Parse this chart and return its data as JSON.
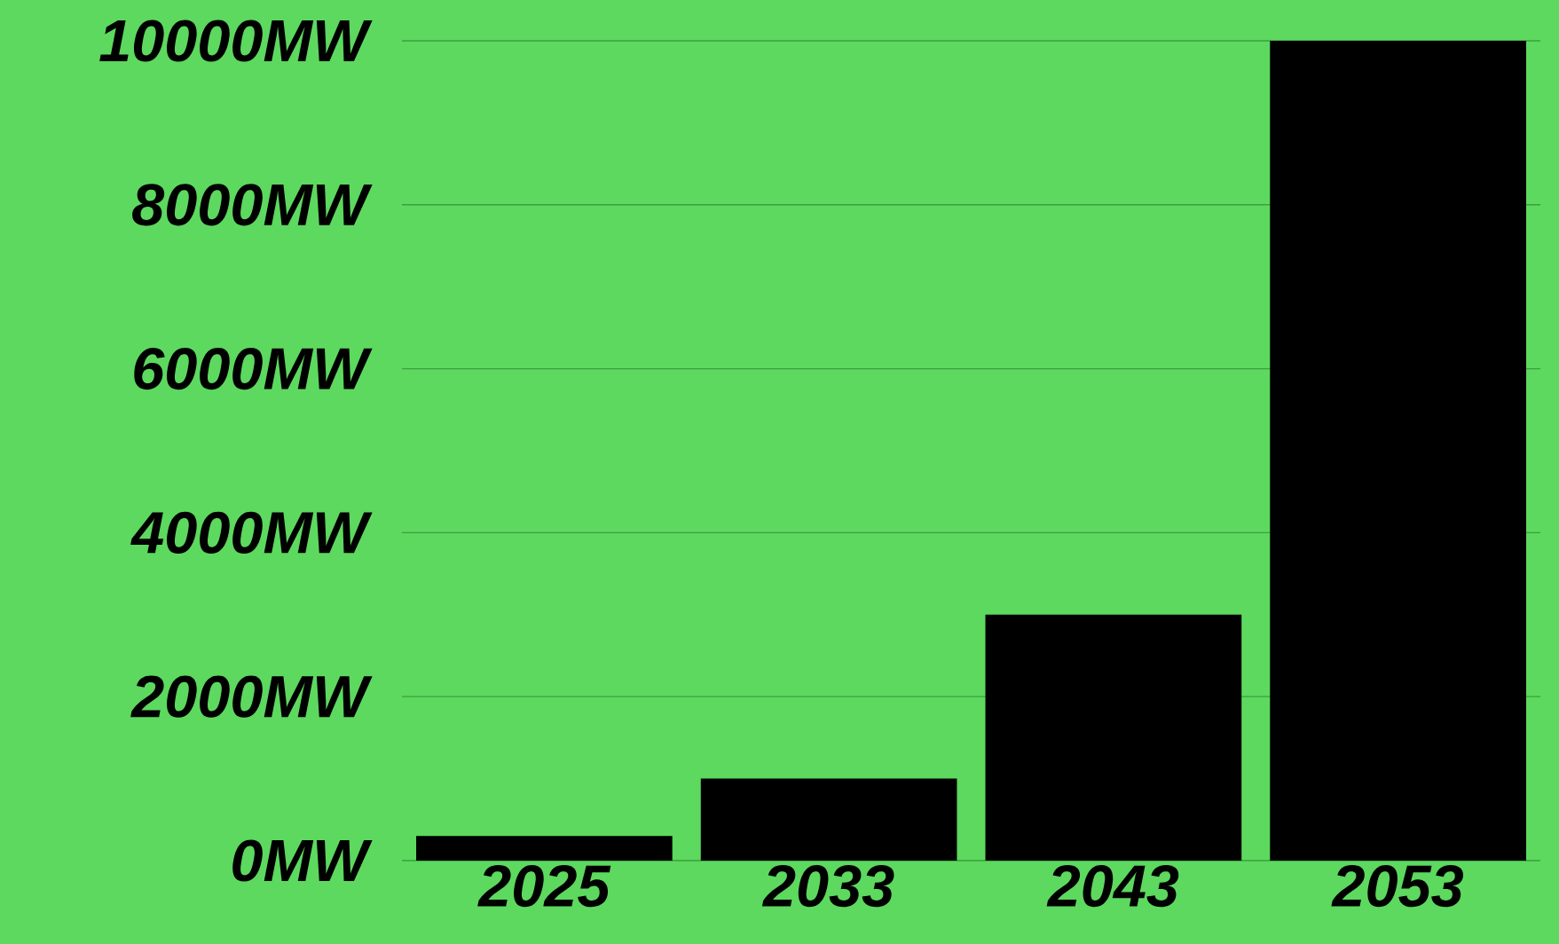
{
  "chart_data": {
    "type": "bar",
    "categories": [
      "2025",
      "2033",
      "2043",
      "2053"
    ],
    "values": [
      300,
      1000,
      3000,
      10000
    ],
    "color": "#000000",
    "ylim": [
      0,
      10000
    ],
    "yticks": [
      {
        "value": 0,
        "label": "0MW"
      },
      {
        "value": 2000,
        "label": "2000MW"
      },
      {
        "value": 4000,
        "label": "4000MW"
      },
      {
        "value": 6000,
        "label": "6000MW"
      },
      {
        "value": 8000,
        "label": "8000MW"
      },
      {
        "value": 10000,
        "label": "10000MW"
      }
    ],
    "grid": "y"
  }
}
